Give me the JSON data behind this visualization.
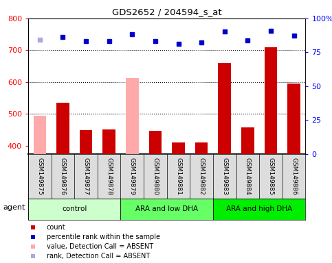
{
  "title": "GDS2652 / 204594_s_at",
  "samples": [
    "GSM149875",
    "GSM149876",
    "GSM149877",
    "GSM149878",
    "GSM149879",
    "GSM149880",
    "GSM149881",
    "GSM149882",
    "GSM149883",
    "GSM149884",
    "GSM149885",
    "GSM149886"
  ],
  "bar_values": [
    495,
    535,
    450,
    452,
    612,
    447,
    410,
    410,
    660,
    458,
    710,
    595
  ],
  "bar_absent": [
    true,
    false,
    false,
    false,
    true,
    false,
    false,
    false,
    false,
    false,
    false,
    false
  ],
  "percentile_values": [
    733,
    742,
    729,
    729,
    750,
    729,
    720,
    724,
    759,
    730,
    762,
    747
  ],
  "percentile_absent": [
    true,
    false,
    false,
    false,
    false,
    false,
    false,
    false,
    false,
    false,
    false,
    false
  ],
  "bar_color_present": "#cc0000",
  "bar_color_absent": "#ffaaaa",
  "dot_color_present": "#0000cc",
  "dot_color_absent": "#aaaadd",
  "ylim_left": [
    375,
    800
  ],
  "ylim_right": [
    0,
    100
  ],
  "yticks_left": [
    400,
    500,
    600,
    700,
    800
  ],
  "yticks_right": [
    0,
    25,
    50,
    75,
    100
  ],
  "groups": [
    {
      "label": "control",
      "start": 0,
      "end": 4,
      "color": "#ccffcc"
    },
    {
      "label": "ARA and low DHA",
      "start": 4,
      "end": 8,
      "color": "#66ff66"
    },
    {
      "label": "ARA and high DHA",
      "start": 8,
      "end": 12,
      "color": "#00ee00"
    }
  ],
  "legend_items": [
    {
      "label": "count",
      "color": "#cc0000"
    },
    {
      "label": "percentile rank within the sample",
      "color": "#0000cc"
    },
    {
      "label": "value, Detection Call = ABSENT",
      "color": "#ffaaaa"
    },
    {
      "label": "rank, Detection Call = ABSENT",
      "color": "#aaaadd"
    }
  ],
  "bar_width": 0.55,
  "agent_label": "agent"
}
